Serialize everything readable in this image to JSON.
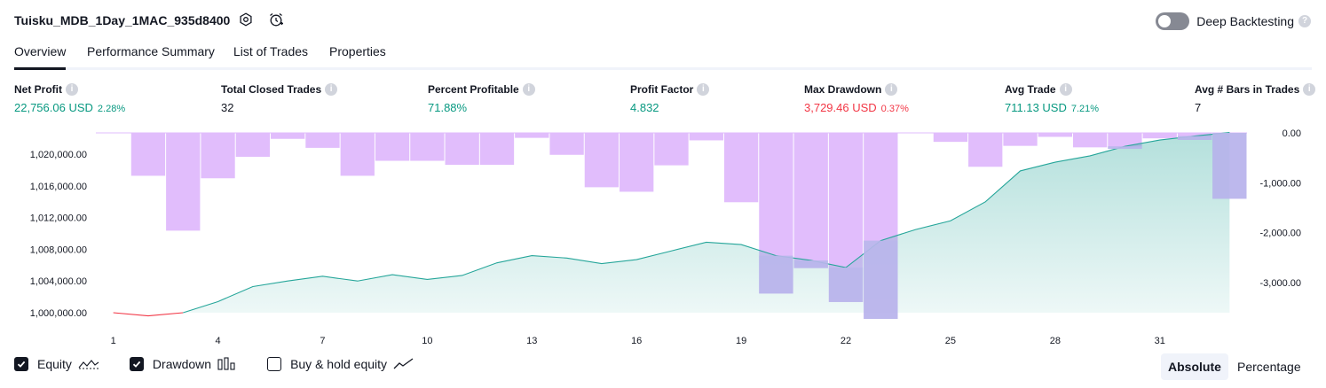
{
  "header": {
    "strategy_name": "Tuisku_MDB_1Day_1MAC_935d8400",
    "deep_backtesting_label": "Deep Backtesting",
    "deep_backtesting_enabled": false
  },
  "tabs": [
    {
      "label": "Overview",
      "active": true
    },
    {
      "label": "Performance Summary",
      "active": false
    },
    {
      "label": "List of Trades",
      "active": false
    },
    {
      "label": "Properties",
      "active": false
    }
  ],
  "stats": [
    {
      "label": "Net Profit",
      "value": "22,756.06 USD",
      "pct": "2.28%",
      "color": "green"
    },
    {
      "label": "Total Closed Trades",
      "value": "32",
      "pct": "",
      "color": "neutral"
    },
    {
      "label": "Percent Profitable",
      "value": "71.88%",
      "pct": "",
      "color": "green"
    },
    {
      "label": "Profit Factor",
      "value": "4.832",
      "pct": "",
      "color": "green"
    },
    {
      "label": "Max Drawdown",
      "value": "3,729.46 USD",
      "pct": "0.37%",
      "color": "red"
    },
    {
      "label": "Avg Trade",
      "value": "711.13 USD",
      "pct": "7.21%",
      "color": "green"
    },
    {
      "label": "Avg # Bars in Trades",
      "value": "7",
      "pct": "",
      "color": "neutral"
    }
  ],
  "colors": {
    "equity_line": "#26a69a",
    "equity_fill": "#26a69a",
    "equity_start_line": "#f23645",
    "drawdown_bar": "#e1bdfc",
    "drawdown_overlap": "#b9b7eb",
    "positive": "#089981",
    "negative": "#f23645"
  },
  "chart_data": {
    "type": "bar+area",
    "x": [
      1,
      2,
      3,
      4,
      5,
      6,
      7,
      8,
      9,
      10,
      11,
      12,
      13,
      14,
      15,
      16,
      17,
      18,
      19,
      20,
      21,
      22,
      23,
      24,
      25,
      26,
      27,
      28,
      29,
      30,
      31,
      32,
      33
    ],
    "x_ticks": [
      1,
      4,
      7,
      10,
      13,
      16,
      19,
      22,
      25,
      28,
      31
    ],
    "series": [
      {
        "name": "Equity",
        "axis": "left",
        "values": [
          1000000,
          999600,
          1000000,
          1001400,
          1003300,
          1004000,
          1004600,
          1004000,
          1004800,
          1004200,
          1004700,
          1006300,
          1007200,
          1006900,
          1006200,
          1006700,
          1007800,
          1008900,
          1008600,
          1007200,
          1006600,
          1005700,
          1009100,
          1010500,
          1011600,
          1014000,
          1017900,
          1019000,
          1019800,
          1021000,
          1021800,
          1022300,
          1022756
        ]
      },
      {
        "name": "Drawdown",
        "axis": "right",
        "values": [
          0,
          -860,
          -1960,
          -910,
          -480,
          -120,
          -300,
          -860,
          -560,
          -560,
          -640,
          -640,
          -100,
          -440,
          -1090,
          -1180,
          -650,
          -150,
          -1390,
          -3220,
          -2710,
          -3390,
          -3729,
          0,
          -180,
          -680,
          -260,
          -80,
          -290,
          -320,
          -110,
          -140,
          -1320
        ]
      }
    ],
    "left_axis": {
      "ticks": [
        "1,000,000.00",
        "1,004,000.00",
        "1,008,000.00",
        "1,012,000.00",
        "1,016,000.00",
        "1,020,000.00"
      ],
      "ylim": [
        1000000,
        1022700
      ]
    },
    "right_axis": {
      "ticks": [
        "0.00",
        "-1,000.00",
        "-2,000.00",
        "-3,000.00"
      ],
      "ylim": [
        -3729,
        0
      ]
    }
  },
  "legend": [
    {
      "label": "Equity",
      "checked": true,
      "icon": "equity-line-icon"
    },
    {
      "label": "Drawdown",
      "checked": true,
      "icon": "drawdown-bars-icon"
    },
    {
      "label": "Buy & hold equity",
      "checked": false,
      "icon": "buy-hold-line-icon"
    }
  ],
  "view_modes": [
    {
      "label": "Absolute",
      "active": true
    },
    {
      "label": "Percentage",
      "active": false
    }
  ]
}
